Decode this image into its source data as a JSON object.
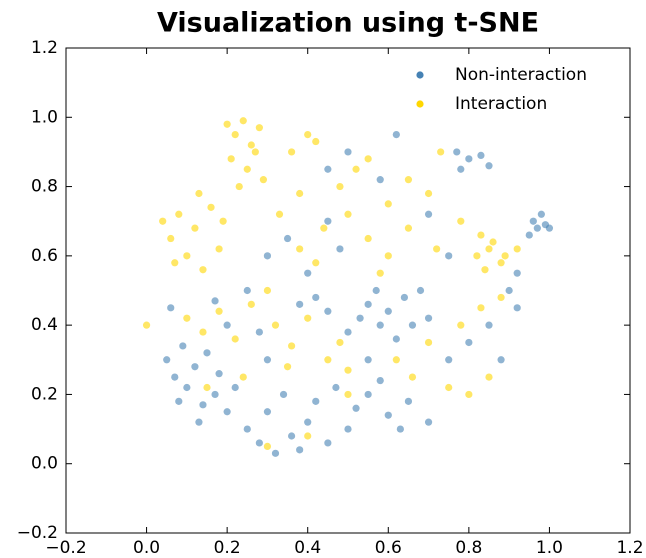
{
  "chart_data": {
    "type": "scatter",
    "title": "Visualization using t-SNE",
    "xlim": [
      -0.2,
      1.2
    ],
    "ylim": [
      -0.2,
      1.2
    ],
    "xticks": [
      {
        "value": -0.2,
        "label": "−0.2"
      },
      {
        "value": 0,
        "label": "0.0"
      },
      0.2,
      0.4,
      0.6,
      0.8,
      {
        "value": 1,
        "label": "1.0"
      },
      1.2
    ],
    "yticks": [
      {
        "value": -0.2,
        "label": "−0.2"
      },
      {
        "value": 0,
        "label": "0.0"
      },
      0.2,
      0.4,
      0.6,
      0.8,
      {
        "value": 1,
        "label": "1.0"
      },
      1.2
    ],
    "legend": "upper right",
    "series": [
      {
        "name": "Non-interaction",
        "color": "#4682b4",
        "x": [
          0.05,
          0.07,
          0.08,
          0.1,
          0.12,
          0.14,
          0.15,
          0.17,
          0.18,
          0.2,
          0.06,
          0.22,
          0.09,
          0.13,
          0.25,
          0.28,
          0.3,
          0.32,
          0.34,
          0.36,
          0.38,
          0.4,
          0.42,
          0.45,
          0.47,
          0.5,
          0.52,
          0.55,
          0.58,
          0.6,
          0.63,
          0.65,
          0.7,
          0.5,
          0.53,
          0.55,
          0.58,
          0.6,
          0.62,
          0.64,
          0.66,
          0.68,
          0.57,
          0.7,
          0.45,
          0.42,
          0.38,
          0.96,
          0.97,
          0.98,
          0.99,
          0.95,
          1.0,
          0.77,
          0.8,
          0.83,
          0.85,
          0.78,
          0.3,
          0.35,
          0.4,
          0.45,
          0.48,
          0.25,
          0.28,
          0.3,
          0.75,
          0.8,
          0.85,
          0.88,
          0.9,
          0.92,
          0.62,
          0.58,
          0.5,
          0.45,
          0.7,
          0.75,
          0.2,
          0.17,
          0.92,
          0.55
        ],
        "y": [
          0.3,
          0.25,
          0.18,
          0.22,
          0.28,
          0.17,
          0.32,
          0.2,
          0.26,
          0.15,
          0.45,
          0.22,
          0.34,
          0.12,
          0.1,
          0.06,
          0.15,
          0.03,
          0.2,
          0.08,
          0.04,
          0.12,
          0.18,
          0.06,
          0.22,
          0.1,
          0.16,
          0.2,
          0.24,
          0.14,
          0.1,
          0.18,
          0.12,
          0.38,
          0.42,
          0.46,
          0.4,
          0.44,
          0.36,
          0.48,
          0.4,
          0.5,
          0.5,
          0.42,
          0.44,
          0.48,
          0.46,
          0.7,
          0.68,
          0.72,
          0.69,
          0.66,
          0.68,
          0.9,
          0.88,
          0.89,
          0.86,
          0.85,
          0.6,
          0.65,
          0.55,
          0.7,
          0.62,
          0.5,
          0.38,
          0.3,
          0.3,
          0.35,
          0.4,
          0.3,
          0.5,
          0.55,
          0.95,
          0.82,
          0.9,
          0.85,
          0.72,
          0.6,
          0.4,
          0.47,
          0.45,
          0.3
        ]
      },
      {
        "name": "Interaction",
        "color": "#ffd700",
        "x": [
          0.0,
          0.2,
          0.22,
          0.24,
          0.26,
          0.28,
          0.21,
          0.25,
          0.29,
          0.23,
          0.27,
          0.04,
          0.06,
          0.08,
          0.1,
          0.12,
          0.14,
          0.16,
          0.18,
          0.07,
          0.13,
          0.19,
          0.82,
          0.84,
          0.86,
          0.88,
          0.83,
          0.85,
          0.89,
          0.4,
          0.42,
          0.36,
          0.48,
          0.52,
          0.55,
          0.6,
          0.65,
          0.7,
          0.73,
          0.33,
          0.38,
          0.44,
          0.5,
          0.55,
          0.6,
          0.65,
          0.72,
          0.78,
          0.1,
          0.14,
          0.18,
          0.22,
          0.26,
          0.32,
          0.36,
          0.4,
          0.3,
          0.35,
          0.45,
          0.5,
          0.48,
          0.62,
          0.66,
          0.7,
          0.75,
          0.8,
          0.85,
          0.78,
          0.83,
          0.88,
          0.3,
          0.4,
          0.5,
          0.24,
          0.15,
          0.58,
          0.42,
          0.38,
          0.92
        ],
        "y": [
          0.4,
          0.98,
          0.95,
          0.99,
          0.92,
          0.97,
          0.88,
          0.85,
          0.82,
          0.8,
          0.9,
          0.7,
          0.65,
          0.72,
          0.6,
          0.68,
          0.56,
          0.74,
          0.62,
          0.58,
          0.78,
          0.7,
          0.6,
          0.56,
          0.64,
          0.58,
          0.66,
          0.62,
          0.6,
          0.95,
          0.93,
          0.9,
          0.8,
          0.85,
          0.88,
          0.75,
          0.82,
          0.78,
          0.9,
          0.72,
          0.78,
          0.68,
          0.72,
          0.65,
          0.6,
          0.68,
          0.62,
          0.7,
          0.42,
          0.38,
          0.44,
          0.36,
          0.46,
          0.4,
          0.34,
          0.42,
          0.5,
          0.28,
          0.3,
          0.27,
          0.35,
          0.3,
          0.25,
          0.35,
          0.22,
          0.2,
          0.25,
          0.4,
          0.45,
          0.48,
          0.05,
          0.08,
          0.2,
          0.25,
          0.22,
          0.55,
          0.58,
          0.62,
          0.62
        ]
      }
    ]
  }
}
